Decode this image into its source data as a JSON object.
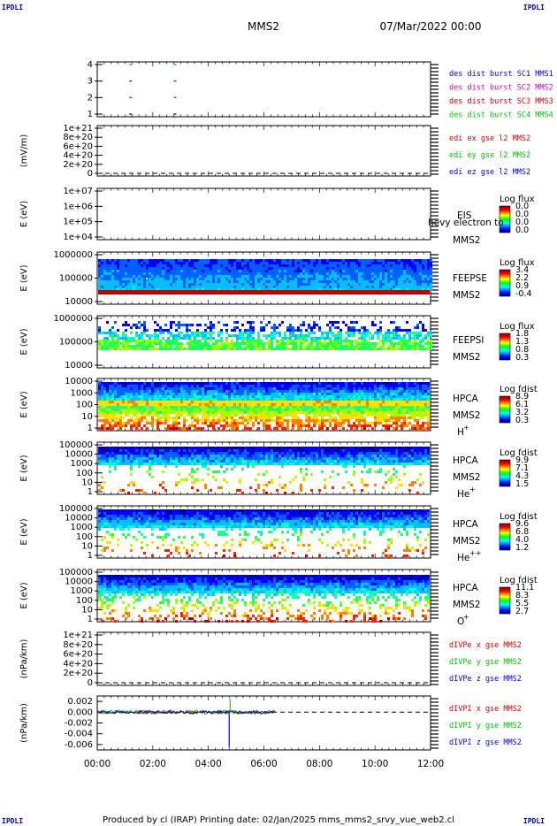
{
  "header": {
    "mission": "MMS2",
    "date": "07/Mar/2022 00:00",
    "corner_label": "IPDLI"
  },
  "footer": {
    "text": "Produced by cl (IRAP)   Printing date: 02/Jan/2025   mms_mms2_srvy_vue_web2.cl"
  },
  "x_axis": {
    "ticks": [
      "00:00",
      "02:00",
      "04:00",
      "06:00",
      "08:00",
      "10:00",
      "12:00"
    ],
    "range_hours": [
      0,
      12
    ]
  },
  "colors": {
    "blue": "#0000d0",
    "red": "#d00000",
    "green": "#00c000",
    "magenta": "#c000c0"
  },
  "panels": {
    "burst": {
      "ticks": [
        "4",
        "3",
        "2",
        "1"
      ],
      "legend": [
        {
          "text": "des dist burst SC1 MMS1",
          "color": "#0000d0"
        },
        {
          "text": "des dist burst SC2 MMS2",
          "color": "#c000c0"
        },
        {
          "text": "des dist burst SC3 MMS3",
          "color": "#d00000"
        },
        {
          "text": "des dist burst SC4 MMS4",
          "color": "#00c000"
        }
      ]
    },
    "edi": {
      "ylabel": "(mV/m)",
      "ticks": [
        "1e+21",
        "8e+20",
        "6e+20",
        "4e+20",
        "2e+20",
        "0"
      ],
      "legend": [
        {
          "text": "edi ex gse l2 MMS2",
          "color": "#d00000"
        },
        {
          "text": "edi ey gse l2 MMS2",
          "color": "#00c000"
        },
        {
          "text": "edi ez gse l2 MMS2",
          "color": "#0000d0"
        }
      ]
    },
    "eis": {
      "ylabel": "E (eV)",
      "ticks": [
        "1e+07",
        "1e+06",
        "1e+05",
        "1e+04"
      ],
      "instrument": "EIS",
      "sc": "MMS2",
      "overlay": "hevy electron to",
      "cb_title": "Log flux",
      "cb_ticks": [
        "0.0",
        "0.0",
        "0.0",
        "0.0"
      ]
    },
    "feepse": {
      "ylabel": "E (eV)",
      "ticks": [
        "1000000",
        "100000",
        "10000"
      ],
      "instrument": "FEEPSE",
      "sc": "MMS2",
      "cb_title": "Log flux",
      "cb_ticks": [
        "3.4",
        "2.2",
        "0.9",
        "-0.4"
      ]
    },
    "feepsi": {
      "ylabel": "E (eV)",
      "ticks": [
        "1000000",
        "100000",
        "10000"
      ],
      "instrument": "FEEPSI",
      "sc": "MMS2",
      "cb_title": "Log flux",
      "cb_ticks": [
        "1.8",
        "1.3",
        "0.8",
        "0.3"
      ]
    },
    "hpca_h": {
      "ylabel": "E (eV)",
      "ticks": [
        "10000",
        "1000",
        "100",
        "10",
        "1"
      ],
      "instrument": "HPCA",
      "sc": "MMS2",
      "species": "H",
      "charge": "+",
      "cb_title": "Log fdist",
      "cb_ticks": [
        "8.9",
        "6.1",
        "3.2",
        "0.3"
      ]
    },
    "hpca_he1": {
      "ylabel": "E (eV)",
      "ticks": [
        "100000",
        "10000",
        "1000",
        "100",
        "10",
        "1"
      ],
      "instrument": "HPCA",
      "sc": "MMS2",
      "species": "He",
      "charge": "+",
      "cb_title": "Log fdist",
      "cb_ticks": [
        "9.9",
        "7.1",
        "4.3",
        "1.5"
      ]
    },
    "hpca_he2": {
      "ylabel": "E (eV)",
      "ticks": [
        "100000",
        "10000",
        "1000",
        "100",
        "10",
        "1"
      ],
      "instrument": "HPCA",
      "sc": "MMS2",
      "species": "He",
      "charge": "++",
      "cb_title": "Log fdist",
      "cb_ticks": [
        "9.6",
        "6.8",
        "4.0",
        "1.2"
      ]
    },
    "hpca_o": {
      "ylabel": "E (eV)",
      "ticks": [
        "100000",
        "10000",
        "1000",
        "100",
        "10",
        "1"
      ],
      "instrument": "HPCA",
      "sc": "MMS2",
      "species": "O",
      "charge": "+",
      "cb_title": "Log fdist",
      "cb_ticks": [
        "11.1",
        "8.3",
        "5.5",
        "2.7"
      ]
    },
    "divpe": {
      "ylabel": "(nPa/km)",
      "ticks": [
        "1e+21",
        "8e+20",
        "6e+20",
        "4e+20",
        "2e+20",
        "0"
      ],
      "legend": [
        {
          "text": "dIVPe x gse MMS2",
          "color": "#d00000"
        },
        {
          "text": "dIVPe y gse MMS2",
          "color": "#00c000"
        },
        {
          "text": "dIVPe z gse MMS2",
          "color": "#0000d0"
        }
      ]
    },
    "divpi": {
      "ylabel": "(nPa/km)",
      "ticks": [
        "0.002",
        "0.000",
        "-0.002",
        "-0.004",
        "-0.006"
      ],
      "legend": [
        {
          "text": "dIVPI x gse MMS2",
          "color": "#d00000"
        },
        {
          "text": "dIVPI y gse MMS2",
          "color": "#00c000"
        },
        {
          "text": "dIVPI z gse MMS2",
          "color": "#0000d0"
        }
      ]
    }
  },
  "chart_data": [
    {
      "type": "scatter",
      "title": "des dist burst",
      "xlabel": "",
      "ylabel": "",
      "ylim": [
        0.5,
        4.5
      ],
      "series": [
        {
          "name": "des dist burst SC1 MMS1",
          "x": [
            1.2,
            2.8
          ],
          "y": [
            1,
            1
          ]
        },
        {
          "name": "des dist burst SC2 MMS2",
          "x": [
            1.2,
            2.8
          ],
          "y": [
            2,
            2
          ]
        },
        {
          "name": "des dist burst SC3 MMS3",
          "x": [
            1.2,
            2.8
          ],
          "y": [
            3,
            3
          ]
        },
        {
          "name": "des dist burst SC4 MMS4",
          "x": [
            1.2,
            2.8
          ],
          "y": [
            4,
            4
          ]
        }
      ]
    },
    {
      "type": "line",
      "ylabel": "(mV/m)",
      "ylim": [
        0,
        1e+21
      ],
      "series": [
        {
          "name": "edi ex gse l2 MMS2",
          "values": []
        },
        {
          "name": "edi ey gse l2 MMS2",
          "values": []
        },
        {
          "name": "edi ez gse l2 MMS2",
          "values": []
        }
      ]
    },
    {
      "type": "heatmap",
      "ylabel": "E (eV)",
      "ylim": [
        10000,
        1000000
      ],
      "note_label": "FEEPSE",
      "colorbar": "Log flux",
      "clim": [
        -0.4,
        3.4
      ],
      "x_coverage_hours": [
        0,
        12
      ]
    },
    {
      "type": "line",
      "ylabel": "(nPa/km)",
      "ylim": [
        -0.007,
        0.003
      ],
      "series": [
        {
          "name": "dIVPI x gse MMS2",
          "x_range": [
            0,
            6.4
          ],
          "level": 0.0
        },
        {
          "name": "dIVPI y gse MMS2",
          "x_range": [
            0,
            6.4
          ],
          "level": 0.0
        },
        {
          "name": "dIVPI z gse MMS2",
          "spike_x": 4.75,
          "spike_min": -0.0065
        }
      ]
    }
  ]
}
